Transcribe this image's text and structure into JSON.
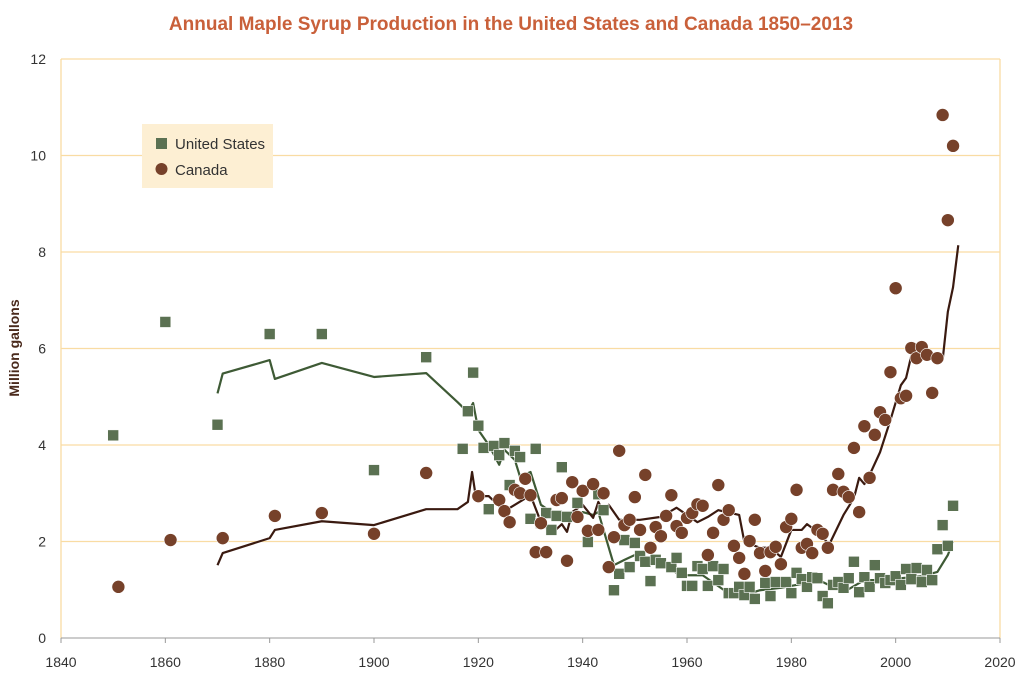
{
  "chart_data": {
    "type": "scatter",
    "title": "Annual Maple Syrup Production in the United States and Canada 1850–2013",
    "xlabel": "",
    "ylabel": "Million gallons",
    "xlim": [
      1840,
      2020
    ],
    "ylim": [
      0,
      12
    ],
    "xticks": [
      1840,
      1860,
      1880,
      1900,
      1920,
      1940,
      1960,
      1980,
      2000,
      2020
    ],
    "yticks": [
      0,
      2,
      4,
      6,
      8,
      10,
      12
    ],
    "grid": "horizontal",
    "legend": "top-left",
    "colors": {
      "us": "#5b7152",
      "canada": "#76412a",
      "us_line": "#3e5a35",
      "canada_line": "#3a1a10",
      "grid": "#f9dca3",
      "title": "#c9603a",
      "legend_bg": "#fdefd3"
    },
    "series": [
      {
        "name": "United States",
        "marker": "square",
        "points": [
          [
            1850,
            4.2
          ],
          [
            1860,
            6.55
          ],
          [
            1870,
            4.42
          ],
          [
            1880,
            6.3
          ],
          [
            1890,
            6.3
          ],
          [
            1900,
            3.48
          ],
          [
            1910,
            5.82
          ],
          [
            1917,
            3.92
          ],
          [
            1918,
            4.7
          ],
          [
            1919,
            5.5
          ],
          [
            1920,
            4.4
          ],
          [
            1921,
            3.94
          ],
          [
            1922,
            2.67
          ],
          [
            1923,
            3.98
          ],
          [
            1924,
            3.79
          ],
          [
            1925,
            4.04
          ],
          [
            1926,
            3.17
          ],
          [
            1927,
            3.88
          ],
          [
            1928,
            3.75
          ],
          [
            1930,
            2.47
          ],
          [
            1931,
            3.92
          ],
          [
            1932,
            2.38
          ],
          [
            1933,
            2.59
          ],
          [
            1934,
            2.24
          ],
          [
            1935,
            2.53
          ],
          [
            1936,
            3.54
          ],
          [
            1937,
            2.51
          ],
          [
            1939,
            2.8
          ],
          [
            1941,
            1.99
          ],
          [
            1943,
            2.98
          ],
          [
            1944,
            2.65
          ],
          [
            1946,
            0.99
          ],
          [
            1947,
            1.33
          ],
          [
            1948,
            2.03
          ],
          [
            1949,
            1.47
          ],
          [
            1950,
            1.97
          ],
          [
            1951,
            1.7
          ],
          [
            1952,
            1.58
          ],
          [
            1953,
            1.18
          ],
          [
            1954,
            1.62
          ],
          [
            1955,
            1.55
          ],
          [
            1957,
            1.47
          ],
          [
            1958,
            1.66
          ],
          [
            1959,
            1.35
          ],
          [
            1960,
            1.08
          ],
          [
            1961,
            1.08
          ],
          [
            1962,
            1.49
          ],
          [
            1963,
            1.43
          ],
          [
            1964,
            1.08
          ],
          [
            1965,
            1.49
          ],
          [
            1966,
            1.2
          ],
          [
            1967,
            1.43
          ],
          [
            1968,
            0.93
          ],
          [
            1969,
            0.93
          ],
          [
            1970,
            1.06
          ],
          [
            1971,
            0.89
          ],
          [
            1972,
            1.06
          ],
          [
            1973,
            0.81
          ],
          [
            1975,
            1.14
          ],
          [
            1976,
            0.87
          ],
          [
            1977,
            1.16
          ],
          [
            1979,
            1.16
          ],
          [
            1980,
            0.93
          ],
          [
            1981,
            1.35
          ],
          [
            1982,
            1.22
          ],
          [
            1983,
            1.06
          ],
          [
            1984,
            1.26
          ],
          [
            1985,
            1.24
          ],
          [
            1986,
            0.87
          ],
          [
            1987,
            0.72
          ],
          [
            1988,
            1.1
          ],
          [
            1989,
            1.16
          ],
          [
            1990,
            1.04
          ],
          [
            1991,
            1.24
          ],
          [
            1992,
            1.58
          ],
          [
            1993,
            0.95
          ],
          [
            1994,
            1.26
          ],
          [
            1995,
            1.06
          ],
          [
            1996,
            1.51
          ],
          [
            1997,
            1.24
          ],
          [
            1998,
            1.14
          ],
          [
            1999,
            1.2
          ],
          [
            2000,
            1.28
          ],
          [
            2001,
            1.1
          ],
          [
            2002,
            1.43
          ],
          [
            2003,
            1.22
          ],
          [
            2004,
            1.45
          ],
          [
            2005,
            1.16
          ],
          [
            2006,
            1.41
          ],
          [
            2007,
            1.2
          ],
          [
            2008,
            1.84
          ],
          [
            2009,
            2.34
          ],
          [
            2010,
            1.91
          ],
          [
            2011,
            2.74
          ]
        ],
        "trend": [
          [
            1870,
            5.07
          ],
          [
            1871,
            5.48
          ],
          [
            1880,
            5.76
          ],
          [
            1881,
            5.37
          ],
          [
            1890,
            5.7
          ],
          [
            1900,
            5.41
          ],
          [
            1910,
            5.49
          ],
          [
            1916,
            4.89
          ],
          [
            1918,
            4.68
          ],
          [
            1919,
            4.87
          ],
          [
            1920,
            4.31
          ],
          [
            1922,
            4.0
          ],
          [
            1924,
            3.59
          ],
          [
            1925,
            3.9
          ],
          [
            1927,
            3.69
          ],
          [
            1928,
            3.34
          ],
          [
            1930,
            3.44
          ],
          [
            1932,
            2.76
          ],
          [
            1934,
            2.61
          ],
          [
            1936,
            2.61
          ],
          [
            1938,
            2.45
          ],
          [
            1940,
            2.61
          ],
          [
            1942,
            2.55
          ],
          [
            1943,
            2.61
          ],
          [
            1944,
            2.24
          ],
          [
            1946,
            1.51
          ],
          [
            1948,
            1.62
          ],
          [
            1950,
            1.72
          ],
          [
            1952,
            1.62
          ],
          [
            1955,
            1.51
          ],
          [
            1959,
            1.3
          ],
          [
            1963,
            1.3
          ],
          [
            1967,
            1.0
          ],
          [
            1971,
            0.89
          ],
          [
            1974,
            0.99
          ],
          [
            1978,
            1.04
          ],
          [
            1982,
            1.12
          ],
          [
            1986,
            1.16
          ],
          [
            1990,
            0.95
          ],
          [
            1994,
            1.2
          ],
          [
            1998,
            1.2
          ],
          [
            2001,
            1.24
          ],
          [
            2005,
            1.28
          ],
          [
            2008,
            1.37
          ],
          [
            2010,
            1.72
          ],
          [
            2011,
            2.0
          ]
        ]
      },
      {
        "name": "Canada",
        "marker": "circle",
        "points": [
          [
            1851,
            1.06
          ],
          [
            1861,
            2.03
          ],
          [
            1871,
            2.07
          ],
          [
            1881,
            2.53
          ],
          [
            1890,
            2.59
          ],
          [
            1900,
            2.16
          ],
          [
            1910,
            3.42
          ],
          [
            1920,
            2.94
          ],
          [
            1924,
            2.86
          ],
          [
            1925,
            2.63
          ],
          [
            1926,
            2.4
          ],
          [
            1927,
            3.07
          ],
          [
            1928,
            3.0
          ],
          [
            1929,
            3.3
          ],
          [
            1930,
            2.96
          ],
          [
            1931,
            1.78
          ],
          [
            1933,
            1.78
          ],
          [
            1932,
            2.38
          ],
          [
            1935,
            2.86
          ],
          [
            1936,
            2.9
          ],
          [
            1937,
            1.6
          ],
          [
            1938,
            3.23
          ],
          [
            1939,
            2.51
          ],
          [
            1940,
            3.05
          ],
          [
            1941,
            2.22
          ],
          [
            1942,
            3.19
          ],
          [
            1943,
            2.24
          ],
          [
            1944,
            3.0
          ],
          [
            1945,
            1.47
          ],
          [
            1946,
            2.09
          ],
          [
            1947,
            3.88
          ],
          [
            1948,
            2.34
          ],
          [
            1949,
            2.45
          ],
          [
            1950,
            2.92
          ],
          [
            1951,
            2.24
          ],
          [
            1952,
            3.38
          ],
          [
            1953,
            1.87
          ],
          [
            1954,
            2.3
          ],
          [
            1955,
            2.11
          ],
          [
            1956,
            2.53
          ],
          [
            1957,
            2.96
          ],
          [
            1958,
            2.32
          ],
          [
            1959,
            2.18
          ],
          [
            1960,
            2.49
          ],
          [
            1961,
            2.59
          ],
          [
            1962,
            2.77
          ],
          [
            1963,
            2.74
          ],
          [
            1964,
            1.72
          ],
          [
            1965,
            2.18
          ],
          [
            1966,
            3.17
          ],
          [
            1967,
            2.45
          ],
          [
            1968,
            2.65
          ],
          [
            1969,
            1.91
          ],
          [
            1970,
            1.66
          ],
          [
            1971,
            1.33
          ],
          [
            1972,
            2.01
          ],
          [
            1973,
            2.45
          ],
          [
            1974,
            1.76
          ],
          [
            1975,
            1.39
          ],
          [
            1976,
            1.78
          ],
          [
            1977,
            1.89
          ],
          [
            1978,
            1.53
          ],
          [
            1979,
            2.3
          ],
          [
            1980,
            2.47
          ],
          [
            1981,
            3.07
          ],
          [
            1982,
            1.87
          ],
          [
            1983,
            1.95
          ],
          [
            1984,
            1.76
          ],
          [
            1985,
            2.24
          ],
          [
            1986,
            2.16
          ],
          [
            1987,
            1.87
          ],
          [
            1988,
            3.07
          ],
          [
            1989,
            3.4
          ],
          [
            1990,
            3.03
          ],
          [
            1991,
            2.92
          ],
          [
            1992,
            3.94
          ],
          [
            1993,
            2.61
          ],
          [
            1994,
            4.39
          ],
          [
            1995,
            3.32
          ],
          [
            1996,
            4.21
          ],
          [
            1997,
            4.68
          ],
          [
            1998,
            4.52
          ],
          [
            1999,
            5.51
          ],
          [
            2000,
            7.25
          ],
          [
            2001,
            4.97
          ],
          [
            2002,
            5.02
          ],
          [
            2003,
            6.01
          ],
          [
            2004,
            5.8
          ],
          [
            2005,
            6.03
          ],
          [
            2006,
            5.87
          ],
          [
            2007,
            5.08
          ],
          [
            2008,
            5.8
          ],
          [
            2009,
            10.84
          ],
          [
            2010,
            8.66
          ],
          [
            2011,
            10.2
          ]
        ],
        "trend": [
          [
            1870,
            1.51
          ],
          [
            1871,
            1.76
          ],
          [
            1880,
            2.07
          ],
          [
            1881,
            2.24
          ],
          [
            1890,
            2.42
          ],
          [
            1900,
            2.34
          ],
          [
            1910,
            2.67
          ],
          [
            1916,
            2.67
          ],
          [
            1918,
            2.82
          ],
          [
            1918.8,
            3.44
          ],
          [
            1919.5,
            2.94
          ],
          [
            1922,
            2.94
          ],
          [
            1925,
            2.63
          ],
          [
            1927,
            2.76
          ],
          [
            1930,
            2.96
          ],
          [
            1932,
            2.4
          ],
          [
            1934,
            2.16
          ],
          [
            1936,
            2.36
          ],
          [
            1937,
            2.2
          ],
          [
            1938,
            2.61
          ],
          [
            1940,
            2.76
          ],
          [
            1942,
            2.49
          ],
          [
            1943,
            2.82
          ],
          [
            1944,
            2.61
          ],
          [
            1945,
            2.76
          ],
          [
            1947,
            2.45
          ],
          [
            1951,
            2.45
          ],
          [
            1955,
            2.51
          ],
          [
            1958,
            2.7
          ],
          [
            1962,
            2.4
          ],
          [
            1964,
            2.51
          ],
          [
            1966,
            2.65
          ],
          [
            1970,
            2.55
          ],
          [
            1971,
            1.99
          ],
          [
            1974,
            1.87
          ],
          [
            1976,
            1.87
          ],
          [
            1978,
            1.68
          ],
          [
            1980,
            2.24
          ],
          [
            1982,
            2.24
          ],
          [
            1983,
            2.36
          ],
          [
            1985,
            2.2
          ],
          [
            1987,
            1.97
          ],
          [
            1987.5,
            1.99
          ],
          [
            1990,
            2.55
          ],
          [
            1992,
            2.9
          ],
          [
            1993,
            3.32
          ],
          [
            1994,
            3.19
          ],
          [
            1995,
            3.38
          ],
          [
            1997,
            3.85
          ],
          [
            1999,
            4.52
          ],
          [
            2001,
            5.24
          ],
          [
            2002,
            5.39
          ],
          [
            2003,
            5.85
          ],
          [
            2005,
            5.76
          ],
          [
            2006,
            5.97
          ],
          [
            2007,
            5.8
          ],
          [
            2009,
            5.76
          ],
          [
            2010,
            6.76
          ],
          [
            2011,
            7.27
          ],
          [
            2012,
            8.14
          ]
        ]
      }
    ]
  }
}
